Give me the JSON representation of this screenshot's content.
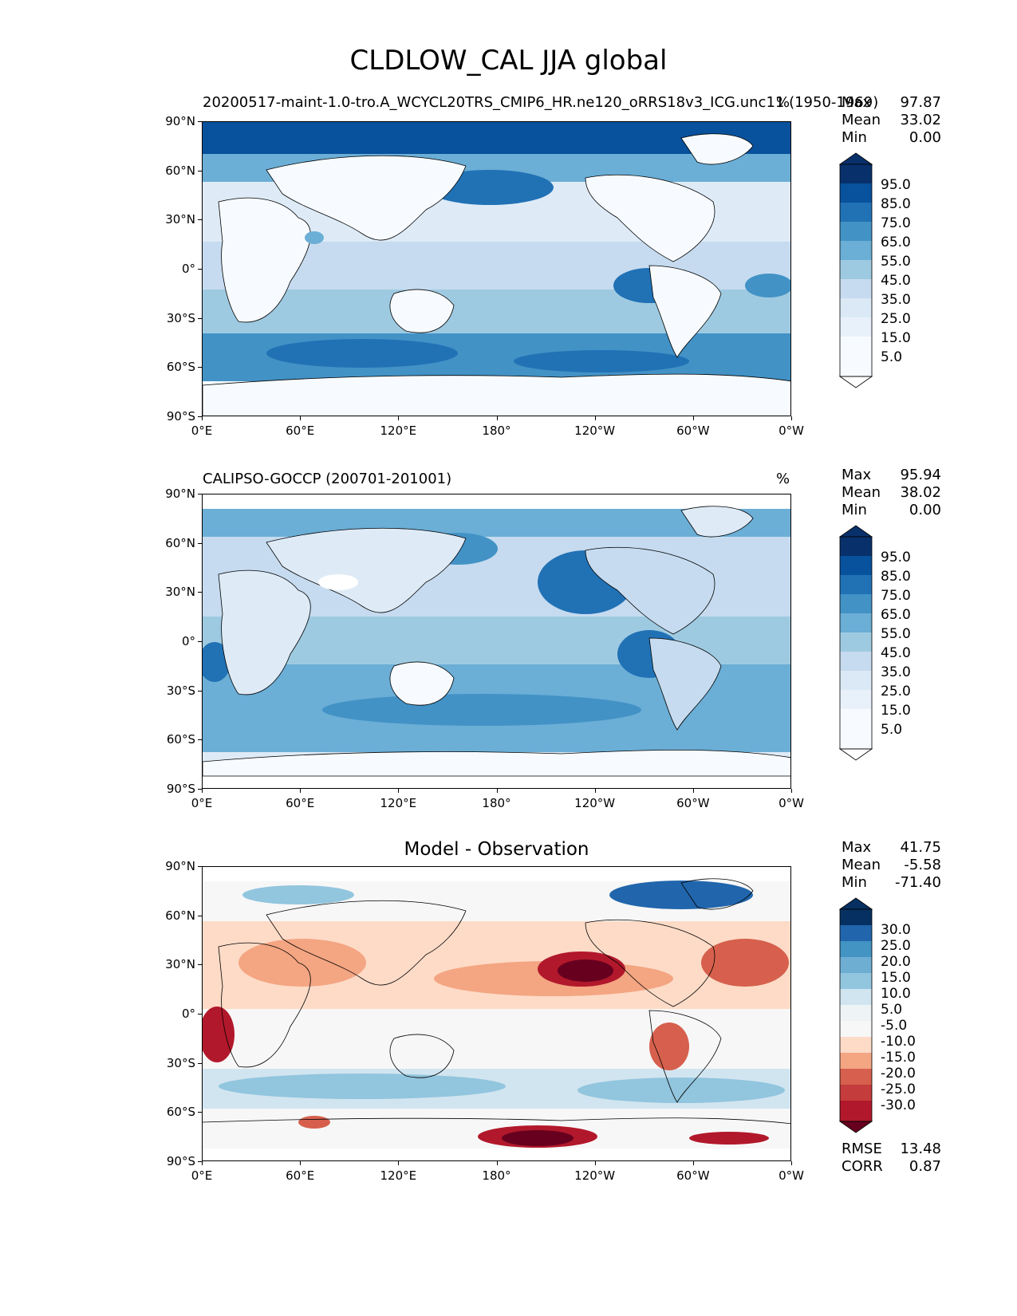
{
  "figure": {
    "title": "CLDLOW_CAL JJA global"
  },
  "axes": {
    "lat_ticks": [
      "90°N",
      "60°N",
      "30°N",
      "0°",
      "30°S",
      "60°S",
      "90°S"
    ],
    "lon_ticks": [
      "0°E",
      "60°E",
      "120°E",
      "180°",
      "120°W",
      "60°W",
      "0°W"
    ]
  },
  "panels": [
    {
      "name": "test",
      "subtitle_left": "20200517-maint-1.0-tro.A_WCYCL20TRS_CMIP6_HR.ne120_oRRS18v3_ICG.unc11 (1950-1969)",
      "units": "%",
      "stats": {
        "max_label": "Max",
        "max": "97.87",
        "mean_label": "Mean",
        "mean": "33.02",
        "min_label": "Min",
        "min": "0.00"
      },
      "colorbar": {
        "labels": [
          "95.0",
          "85.0",
          "75.0",
          "65.0",
          "55.0",
          "45.0",
          "35.0",
          "25.0",
          "15.0",
          "5.0"
        ]
      }
    },
    {
      "name": "reference",
      "subtitle_left": "CALIPSO-GOCCP (200701-201001)",
      "units": "%",
      "stats": {
        "max_label": "Max",
        "max": "95.94",
        "mean_label": "Mean",
        "mean": "38.02",
        "min_label": "Min",
        "min": "0.00"
      },
      "colorbar": {
        "labels": [
          "95.0",
          "85.0",
          "75.0",
          "65.0",
          "55.0",
          "45.0",
          "35.0",
          "25.0",
          "15.0",
          "5.0"
        ]
      }
    },
    {
      "name": "difference",
      "subtitle_center": "Model - Observation",
      "stats": {
        "max_label": "Max",
        "max": "41.75",
        "mean_label": "Mean",
        "mean": "-5.58",
        "min_label": "Min",
        "min": "-71.40"
      },
      "colorbar": {
        "labels": [
          "30.0",
          "25.0",
          "20.0",
          "15.0",
          "10.0",
          "5.0",
          "-5.0",
          "-10.0",
          "-15.0",
          "-20.0",
          "-25.0",
          "-30.0"
        ]
      },
      "metrics": {
        "rmse_label": "RMSE",
        "rmse": "13.48",
        "corr_label": "CORR",
        "corr": "0.87"
      }
    }
  ],
  "colors": {
    "blues": [
      "#f7fbff",
      "#deebf7",
      "#c6dbef",
      "#9ecae1",
      "#6baed6",
      "#4292c6",
      "#2171b5",
      "#08519c",
      "#08306b"
    ],
    "diverging": [
      "#67001f",
      "#b2182b",
      "#d6604d",
      "#f4a582",
      "#fddbc7",
      "#f7f7f7",
      "#d1e5f0",
      "#92c5de",
      "#4393c3",
      "#2166ac",
      "#053061"
    ]
  }
}
